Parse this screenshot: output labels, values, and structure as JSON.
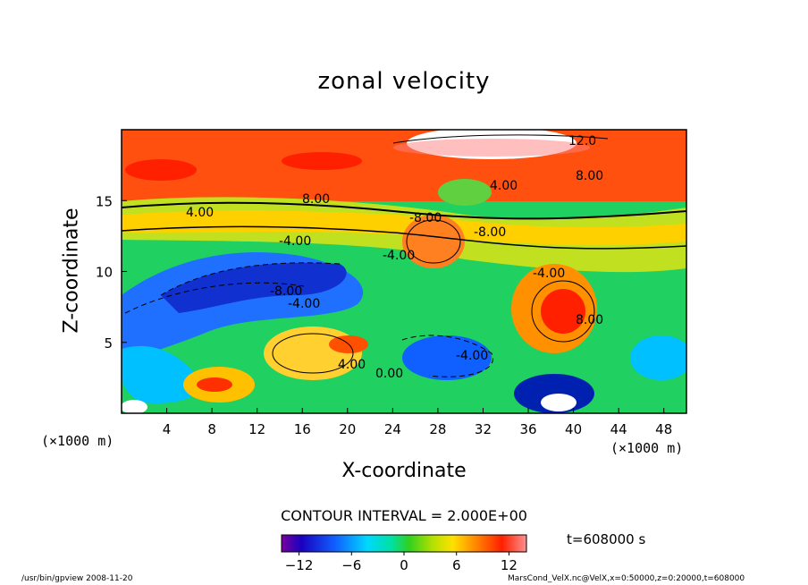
{
  "chart_data": {
    "type": "heatmap",
    "title": "zonal velocity",
    "xlabel": "X-coordinate",
    "ylabel": "Z-coordinate",
    "x_unit": "(×1000 m)",
    "x_unit_left": "(×1000 m)",
    "xlim": [
      0,
      50
    ],
    "ylim": [
      0,
      20
    ],
    "x_ticks": [
      4,
      8,
      12,
      16,
      20,
      24,
      28,
      32,
      36,
      40,
      44,
      48
    ],
    "y_ticks": [
      5,
      10,
      15
    ],
    "contour_interval": "CONTOUR INTERVAL = 2.000E+00",
    "colorbar_ticks": [
      -12,
      -6,
      0,
      6,
      12
    ],
    "colorbar_range": [
      -14,
      14
    ],
    "time_label": "t=608000 s",
    "contour_labels": [
      "12.0",
      "8.00",
      "4.00",
      "8.00",
      "4.00",
      "-8.00",
      "-4.00",
      "-8.00",
      "-4.00",
      "4.00",
      "-4.00",
      "0.00",
      "-4.00",
      "-8.00",
      "8.00",
      "-4.00"
    ],
    "grid": false
  },
  "footer": {
    "left": "/usr/bin/gpview  2008-11-20",
    "right": "MarsCond_VelX.nc@VelX,x=0:50000,z=0:20000,t=608000"
  }
}
